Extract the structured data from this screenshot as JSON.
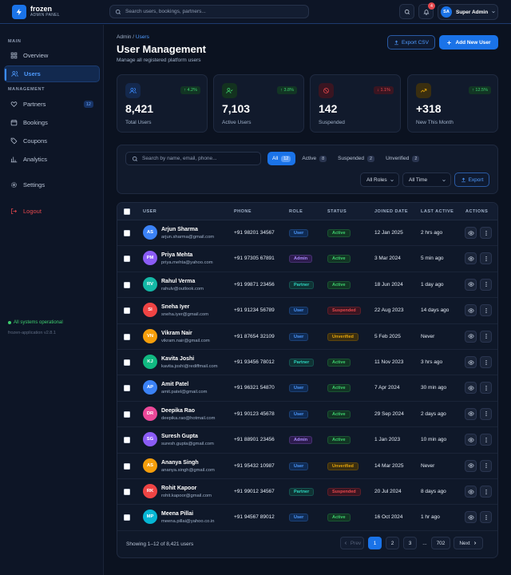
{
  "app": {
    "name": "frozen",
    "subtitle": "ADMIN PANEL"
  },
  "topbar": {
    "search_placeholder": "Search users, bookings, partners...",
    "notification_count": "4",
    "user_initials": "SA",
    "user_name": "Super Admin"
  },
  "sidebar": {
    "section_main": "MAIN",
    "section_management": "MANAGEMENT",
    "items": [
      {
        "label": "Overview",
        "icon": "grid-icon"
      },
      {
        "label": "Users",
        "icon": "users-icon",
        "active": true
      },
      {
        "label": "Partners",
        "icon": "handshake-icon",
        "count": "12"
      },
      {
        "label": "Bookings",
        "icon": "calendar-icon"
      },
      {
        "label": "Coupons",
        "icon": "tag-icon"
      },
      {
        "label": "Analytics",
        "icon": "bar-chart-icon"
      },
      {
        "label": "Settings",
        "icon": "gear-icon"
      },
      {
        "label": "Logout",
        "icon": "logout-icon"
      }
    ],
    "status": "All systems operational",
    "version": "frozen-application v2.8.1"
  },
  "page": {
    "breadcrumb_root": "Admin",
    "breadcrumb_sep": "/",
    "breadcrumb_current": "Users",
    "title": "User Management",
    "subtitle": "Manage all registered platform users",
    "export_csv": "Export CSV",
    "add_user": "Add New User"
  },
  "stats": [
    {
      "value": "8,421",
      "label": "Total Users",
      "change": "↑ 4.2%",
      "trend": "up",
      "icon": "users-icon",
      "color": "#3b8cff"
    },
    {
      "value": "7,103",
      "label": "Active Users",
      "change": "↑ 3.8%",
      "trend": "up",
      "icon": "user-check-icon",
      "color": "#3ecf6e"
    },
    {
      "value": "142",
      "label": "Suspended",
      "change": "↓ 1.1%",
      "trend": "down",
      "icon": "ban-icon",
      "color": "#e5484d"
    },
    {
      "value": "+318",
      "label": "New This Month",
      "change": "↑ 12.5%",
      "trend": "up",
      "icon": "trend-up-icon",
      "color": "#e5a50a"
    }
  ],
  "filters": {
    "search_placeholder": "Search by name, email, phone...",
    "tabs": [
      {
        "label": "All",
        "count": "12",
        "active": true
      },
      {
        "label": "Active",
        "count": "8"
      },
      {
        "label": "Suspended",
        "count": "2"
      },
      {
        "label": "Unverified",
        "count": "2"
      }
    ],
    "role_select": "All Roles",
    "time_select": "All Time",
    "export": "Export"
  },
  "table": {
    "headers": [
      "USER",
      "PHONE",
      "ROLE",
      "STATUS",
      "JOINED DATE",
      "LAST ACTIVE",
      "ACTIONS"
    ],
    "rows": [
      {
        "initials": "AS",
        "name": "Arjun Sharma",
        "email": "arjun.sharma@gmail.com",
        "phone": "+91 98201 34567",
        "role": "User",
        "status": "Active",
        "joined": "12 Jan 2025",
        "last": "2 hrs ago",
        "color": "#3b82f6"
      },
      {
        "initials": "PM",
        "name": "Priya Mehta",
        "email": "priya.mehta@yahoo.com",
        "phone": "+91 97305 67891",
        "role": "Admin",
        "status": "Active",
        "joined": "3 Mar 2024",
        "last": "5 min ago",
        "color": "#8b5cf6"
      },
      {
        "initials": "RV",
        "name": "Rahul Verma",
        "email": "rahulv@outlook.com",
        "phone": "+91 99871 23456",
        "role": "Partner",
        "status": "Active",
        "joined": "18 Jun 2024",
        "last": "1 day ago",
        "color": "#14b8a6"
      },
      {
        "initials": "SI",
        "name": "Sneha Iyer",
        "email": "sneha.iyer@gmail.com",
        "phone": "+91 91234 56789",
        "role": "User",
        "status": "Suspended",
        "joined": "22 Aug 2023",
        "last": "14 days ago",
        "color": "#ef4444"
      },
      {
        "initials": "VN",
        "name": "Vikram Nair",
        "email": "vikram.nair@gmail.com",
        "phone": "+91 87654 32109",
        "role": "User",
        "status": "Unverified",
        "joined": "5 Feb 2025",
        "last": "Never",
        "color": "#f59e0b"
      },
      {
        "initials": "KJ",
        "name": "Kavita Joshi",
        "email": "kavita.joshi@rediffmail.com",
        "phone": "+91 93456 78012",
        "role": "Partner",
        "status": "Active",
        "joined": "11 Nov 2023",
        "last": "3 hrs ago",
        "color": "#10b981"
      },
      {
        "initials": "AP",
        "name": "Amit Patel",
        "email": "amit.patel@gmail.com",
        "phone": "+91 96321 54870",
        "role": "User",
        "status": "Active",
        "joined": "7 Apr 2024",
        "last": "30 min ago",
        "color": "#3b82f6"
      },
      {
        "initials": "DR",
        "name": "Deepika Rao",
        "email": "deepika.rao@hotmail.com",
        "phone": "+91 90123 45678",
        "role": "User",
        "status": "Active",
        "joined": "29 Sep 2024",
        "last": "2 days ago",
        "color": "#ec4899"
      },
      {
        "initials": "SG",
        "name": "Suresh Gupta",
        "email": "suresh.gupta@gmail.com",
        "phone": "+91 88901 23456",
        "role": "Admin",
        "status": "Active",
        "joined": "1 Jan 2023",
        "last": "10 min ago",
        "color": "#8b5cf6"
      },
      {
        "initials": "AS",
        "name": "Ananya Singh",
        "email": "ananya.singh@gmail.com",
        "phone": "+91 95432 10987",
        "role": "User",
        "status": "Unverified",
        "joined": "14 Mar 2025",
        "last": "Never",
        "color": "#f59e0b"
      },
      {
        "initials": "RK",
        "name": "Rohit Kapoor",
        "email": "rohit.kapoor@gmail.com",
        "phone": "+91 99012 34567",
        "role": "Partner",
        "status": "Suspended",
        "joined": "20 Jul 2024",
        "last": "8 days ago",
        "color": "#ef4444"
      },
      {
        "initials": "MP",
        "name": "Meena Pillai",
        "email": "meena.pillai@yahoo.co.in",
        "phone": "+91 94567 89012",
        "role": "User",
        "status": "Active",
        "joined": "16 Oct 2024",
        "last": "1 hr ago",
        "color": "#06b6d4"
      }
    ],
    "showing": "Showing 1–12 of 8,421 users"
  },
  "pagination": {
    "prev": "Prev",
    "pages": [
      "1",
      "2",
      "3"
    ],
    "ellipsis": "...",
    "last": "702",
    "next": "Next",
    "current": "1"
  }
}
